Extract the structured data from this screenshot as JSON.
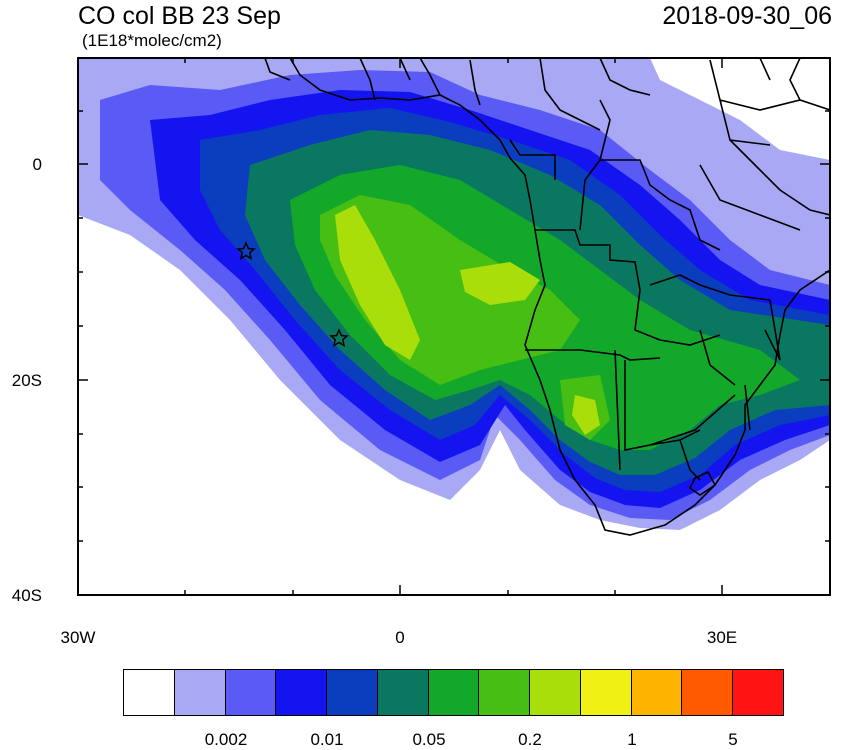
{
  "header": {
    "title": "CO col BB 23 Sep",
    "units": "(1E18*molec/cm2)",
    "timestamp": "2018-09-30_06"
  },
  "axes": {
    "lat_labels": [
      "0",
      "20S",
      "40S"
    ],
    "lon_labels": [
      "30W",
      "0",
      "30E"
    ]
  },
  "colorbar": {
    "colors": [
      "#ffffff",
      "#a8a8f5",
      "#5a5af5",
      "#1414f0",
      "#0a3ebe",
      "#0a7860",
      "#14a82a",
      "#46be14",
      "#aade0a",
      "#f0f014",
      "#ffb400",
      "#ff5a00",
      "#ff1414"
    ],
    "labels": [
      "0.002",
      "0.01",
      "0.05",
      "0.2",
      "1",
      "5"
    ]
  },
  "markers": [
    {
      "name": "star-marker"
    },
    {
      "name": "star-marker"
    }
  ]
}
